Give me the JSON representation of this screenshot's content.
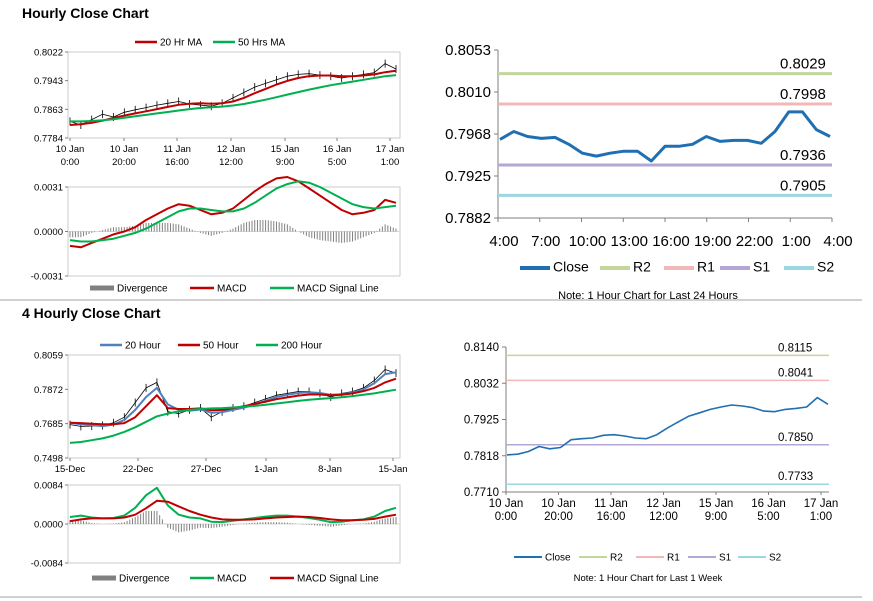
{
  "sections": {
    "hourly_title": "Hourly Close Chart",
    "four_hourly_title": "4 Hourly Close Chart"
  },
  "colors": {
    "price": "#000000",
    "ma_red": "#c00000",
    "ma_green": "#00b050",
    "ma_blue": "#4f81bd",
    "close_blue": "#1f6fb2",
    "r2": "#c4d79b",
    "r1": "#f2b8b8",
    "s1": "#b4a7d6",
    "s2": "#9bd7e0",
    "divergence": "#808080"
  },
  "chart_data": [
    {
      "id": "hourly_price",
      "type": "line",
      "title": "",
      "ylim": [
        0.7784,
        0.8022
      ],
      "yticks": [
        "0.8022",
        "0.7943",
        "0.7863",
        "0.7784"
      ],
      "xticks": [
        [
          "10 Jan",
          "0:00"
        ],
        [
          "10 Jan",
          "20:00"
        ],
        [
          "11 Jan",
          "16:00"
        ],
        [
          "12 Jan",
          "12:00"
        ],
        [
          "15 Jan",
          "9:00"
        ],
        [
          "16 Jan",
          "5:00"
        ],
        [
          "17 Jan",
          "1:00"
        ]
      ],
      "legend": [
        "20 Hr MA",
        "50 Hrs MA"
      ],
      "x": [
        0,
        4,
        8,
        12,
        16,
        20,
        24,
        28,
        32,
        36,
        40,
        44,
        48,
        52,
        56,
        60,
        64,
        68,
        72,
        76,
        80,
        84,
        88,
        92,
        96,
        100,
        104,
        108,
        112,
        116,
        120
      ],
      "series": [
        {
          "name": "",
          "color_key": "price",
          "values": [
            0.783,
            0.782,
            0.7835,
            0.785,
            0.7842,
            0.7855,
            0.7862,
            0.7868,
            0.7875,
            0.788,
            0.7885,
            0.7878,
            0.7875,
            0.7872,
            0.788,
            0.7895,
            0.791,
            0.7925,
            0.7935,
            0.7945,
            0.7955,
            0.796,
            0.7962,
            0.7958,
            0.7955,
            0.795,
            0.7955,
            0.796,
            0.7965,
            0.799,
            0.7975
          ]
        },
        {
          "name": "20 Hr MA",
          "color_key": "ma_red",
          "values": [
            0.782,
            0.7822,
            0.7826,
            0.7832,
            0.784,
            0.7846,
            0.7852,
            0.7858,
            0.7864,
            0.787,
            0.7876,
            0.7879,
            0.788,
            0.7879,
            0.788,
            0.7885,
            0.7895,
            0.7908,
            0.792,
            0.7932,
            0.7942,
            0.795,
            0.7955,
            0.7957,
            0.7957,
            0.7955,
            0.7955,
            0.7957,
            0.796,
            0.7966,
            0.797
          ]
        },
        {
          "name": "50 Hrs MA",
          "color_key": "ma_green",
          "values": [
            0.783,
            0.783,
            0.7831,
            0.7833,
            0.7836,
            0.784,
            0.7844,
            0.7848,
            0.7852,
            0.7856,
            0.786,
            0.7864,
            0.7867,
            0.7869,
            0.7871,
            0.7874,
            0.7878,
            0.7884,
            0.789,
            0.7897,
            0.7904,
            0.7911,
            0.7918,
            0.7924,
            0.793,
            0.7935,
            0.794,
            0.7945,
            0.795,
            0.7955,
            0.7958
          ]
        }
      ]
    },
    {
      "id": "hourly_macd",
      "type": "line",
      "title": "",
      "ylim": [
        -0.0031,
        0.0031
      ],
      "yticks": [
        "0.0031",
        "0.0000",
        "-0.0031"
      ],
      "legend": [
        "Divergence",
        "MACD",
        "MACD Signal Line"
      ],
      "x": [
        0,
        4,
        8,
        12,
        16,
        20,
        24,
        28,
        32,
        36,
        40,
        44,
        48,
        52,
        56,
        60,
        64,
        68,
        72,
        76,
        80,
        84,
        88,
        92,
        96,
        100,
        104,
        108,
        112,
        116,
        120
      ],
      "series": [
        {
          "name": "MACD",
          "color_key": "ma_red",
          "values": [
            -0.001,
            -0.0011,
            -0.0008,
            -0.0005,
            -0.0002,
            0.0,
            0.0003,
            0.0008,
            0.0012,
            0.0016,
            0.0019,
            0.0018,
            0.0015,
            0.0012,
            0.0013,
            0.0016,
            0.0022,
            0.0028,
            0.0033,
            0.0037,
            0.0038,
            0.0035,
            0.003,
            0.0025,
            0.002,
            0.0015,
            0.0012,
            0.0013,
            0.0015,
            0.0022,
            0.002
          ]
        },
        {
          "name": "MACD Signal Line",
          "color_key": "ma_green",
          "values": [
            -0.0006,
            -0.0007,
            -0.0007,
            -0.0006,
            -0.0005,
            -0.0003,
            -0.0001,
            0.0002,
            0.0006,
            0.001,
            0.0014,
            0.0016,
            0.0016,
            0.0015,
            0.0014,
            0.0014,
            0.0016,
            0.002,
            0.0025,
            0.003,
            0.0033,
            0.0035,
            0.0034,
            0.0031,
            0.0027,
            0.0023,
            0.0019,
            0.0017,
            0.0016,
            0.0017,
            0.0018
          ]
        },
        {
          "name": "Divergence",
          "color_key": "divergence",
          "values": [
            -0.0004,
            -0.0004,
            -0.0001,
            0.0001,
            0.0003,
            0.0003,
            0.0004,
            0.0006,
            0.0006,
            0.0006,
            0.0005,
            0.0002,
            -0.0001,
            -0.0003,
            -0.0001,
            0.0002,
            0.0006,
            0.0008,
            0.0008,
            0.0007,
            0.0005,
            0.0,
            -0.0004,
            -0.0006,
            -0.0007,
            -0.0008,
            -0.0007,
            -0.0004,
            -0.0001,
            0.0005,
            0.0002
          ]
        }
      ]
    },
    {
      "id": "hourly_close",
      "type": "line",
      "title": "",
      "ylim": [
        0.7882,
        0.8053
      ],
      "yticks": [
        "0.8053",
        "0.8010",
        "0.7968",
        "0.7925",
        "0.7882"
      ],
      "xticks": [
        "4:00",
        "7:00",
        "10:00",
        "13:00",
        "16:00",
        "19:00",
        "22:00",
        "1:00",
        "4:00"
      ],
      "legend": [
        "Close",
        "R2",
        "R1",
        "S1",
        "S2"
      ],
      "levels": [
        {
          "name": "R2",
          "value": 0.8029,
          "label": "0.8029",
          "color_key": "r2"
        },
        {
          "name": "R1",
          "value": 0.7998,
          "label": "0.7998",
          "color_key": "r1"
        },
        {
          "name": "S1",
          "value": 0.7936,
          "label": "0.7936",
          "color_key": "s1"
        },
        {
          "name": "S2",
          "value": 0.7905,
          "label": "0.7905",
          "color_key": "s2"
        }
      ],
      "x": [
        0,
        1,
        2,
        3,
        4,
        5,
        6,
        7,
        8,
        9,
        10,
        11,
        12,
        13,
        14,
        15,
        16,
        17,
        18,
        19,
        20,
        21,
        22,
        23,
        24
      ],
      "values": [
        0.7962,
        0.797,
        0.7965,
        0.7963,
        0.7964,
        0.7957,
        0.7948,
        0.7945,
        0.7948,
        0.795,
        0.795,
        0.794,
        0.7955,
        0.7955,
        0.7957,
        0.7965,
        0.796,
        0.7961,
        0.7961,
        0.7958,
        0.797,
        0.799,
        0.799,
        0.7972,
        0.7965
      ],
      "note": "Note: 1 Hour Chart for Last 24 Hours"
    },
    {
      "id": "four_hourly_price",
      "type": "line",
      "title": "",
      "ylim": [
        0.7498,
        0.8059
      ],
      "yticks": [
        "0.8059",
        "0.7872",
        "0.7685",
        "0.7498"
      ],
      "xticks": [
        "15-Dec",
        "22-Dec",
        "27-Dec",
        "1-Jan",
        "8-Jan",
        "15-Jan"
      ],
      "legend": [
        "20 Hour",
        "50 Hour",
        "200 Hour"
      ],
      "x": [
        0,
        4,
        8,
        12,
        16,
        20,
        24,
        28,
        32,
        36,
        40,
        44,
        48,
        52,
        56,
        60,
        64,
        68,
        72,
        76,
        80,
        84,
        88,
        92,
        96,
        100,
        104,
        108,
        112,
        116,
        120
      ],
      "series": [
        {
          "name": "",
          "color_key": "price",
          "values": [
            0.768,
            0.767,
            0.7672,
            0.7675,
            0.769,
            0.772,
            0.78,
            0.788,
            0.791,
            0.775,
            0.774,
            0.776,
            0.777,
            0.772,
            0.775,
            0.777,
            0.778,
            0.78,
            0.782,
            0.784,
            0.785,
            0.786,
            0.786,
            0.785,
            0.783,
            0.785,
            0.786,
            0.788,
            0.792,
            0.798,
            0.796
          ]
        },
        {
          "name": "20 Hour",
          "color_key": "ma_blue",
          "values": [
            0.769,
            0.7682,
            0.7676,
            0.7672,
            0.768,
            0.7705,
            0.776,
            0.783,
            0.788,
            0.779,
            0.776,
            0.7755,
            0.7762,
            0.7745,
            0.7748,
            0.776,
            0.7772,
            0.779,
            0.781,
            0.783,
            0.7842,
            0.7852,
            0.7856,
            0.7852,
            0.7842,
            0.7845,
            0.7855,
            0.7872,
            0.7905,
            0.7955,
            0.7965
          ]
        },
        {
          "name": "50 Hour",
          "color_key": "ma_red",
          "values": [
            0.769,
            0.7688,
            0.7685,
            0.7682,
            0.7682,
            0.7688,
            0.772,
            0.778,
            0.784,
            0.777,
            0.7765,
            0.7765,
            0.7768,
            0.7758,
            0.776,
            0.777,
            0.778,
            0.7792,
            0.7805,
            0.7818,
            0.7828,
            0.7838,
            0.7844,
            0.7844,
            0.784,
            0.7842,
            0.785,
            0.7862,
            0.788,
            0.791,
            0.793
          ]
        },
        {
          "name": "200 Hour",
          "color_key": "ma_green",
          "values": [
            0.758,
            0.7585,
            0.7595,
            0.7605,
            0.762,
            0.764,
            0.7665,
            0.7695,
            0.7725,
            0.774,
            0.7752,
            0.776,
            0.7765,
            0.7768,
            0.777,
            0.7773,
            0.7777,
            0.7782,
            0.7788,
            0.7795,
            0.7802,
            0.7809,
            0.7815,
            0.782,
            0.7824,
            0.7829,
            0.7835,
            0.7842,
            0.785,
            0.786,
            0.787
          ]
        }
      ]
    },
    {
      "id": "four_hourly_macd",
      "type": "line",
      "title": "",
      "ylim": [
        -0.0084,
        0.0084
      ],
      "yticks": [
        "0.0084",
        "0.0000",
        "-0.0084"
      ],
      "legend": [
        "Divergence",
        "MACD",
        "MACD Signal Line"
      ],
      "x": [
        0,
        4,
        8,
        12,
        16,
        20,
        24,
        28,
        32,
        36,
        40,
        44,
        48,
        52,
        56,
        60,
        64,
        68,
        72,
        76,
        80,
        84,
        88,
        92,
        96,
        100,
        104,
        108,
        112,
        116,
        120
      ],
      "series": [
        {
          "name": "MACD",
          "color_key": "ma_green",
          "values": [
            0.0015,
            0.0018,
            0.0014,
            0.0012,
            0.0013,
            0.0018,
            0.0035,
            0.0062,
            0.0078,
            0.004,
            0.002,
            0.0014,
            0.0012,
            0.0005,
            0.0004,
            0.0007,
            0.001,
            0.0013,
            0.0016,
            0.0018,
            0.0018,
            0.0016,
            0.0013,
            0.0009,
            0.0004,
            0.0005,
            0.0008,
            0.001,
            0.0016,
            0.0028,
            0.0035
          ]
        },
        {
          "name": "MACD Signal Line",
          "color_key": "ma_red",
          "values": [
            0.0006,
            0.001,
            0.0012,
            0.0012,
            0.0012,
            0.0014,
            0.002,
            0.0034,
            0.005,
            0.0048,
            0.0038,
            0.0028,
            0.002,
            0.0014,
            0.001,
            0.0009,
            0.0009,
            0.001,
            0.0012,
            0.0014,
            0.0015,
            0.0016,
            0.0015,
            0.0013,
            0.001,
            0.0008,
            0.0008,
            0.0009,
            0.0011,
            0.0016,
            0.002
          ]
        },
        {
          "name": "Divergence",
          "color_key": "divergence",
          "values": [
            0.0009,
            0.0008,
            0.0002,
            0.0,
            0.0001,
            0.0004,
            0.0015,
            0.0028,
            0.0028,
            -0.0008,
            -0.0018,
            -0.0014,
            -0.0008,
            -0.0009,
            -0.0006,
            -0.0002,
            0.0001,
            0.0003,
            0.0004,
            0.0004,
            0.0003,
            0.0,
            -0.0002,
            -0.0004,
            -0.0006,
            -0.0003,
            0.0,
            0.0001,
            0.0005,
            0.0012,
            0.0015
          ]
        }
      ]
    },
    {
      "id": "week_close",
      "type": "line",
      "title": "",
      "ylim": [
        0.771,
        0.814
      ],
      "yticks": [
        "0.8140",
        "0.8032",
        "0.7925",
        "0.7818",
        "0.7710"
      ],
      "xticks": [
        [
          "10 Jan",
          "0:00"
        ],
        [
          "10 Jan",
          "20:00"
        ],
        [
          "11 Jan",
          "16:00"
        ],
        [
          "12 Jan",
          "12:00"
        ],
        [
          "15 Jan",
          "9:00"
        ],
        [
          "16 Jan",
          "5:00"
        ],
        [
          "17 Jan",
          "1:00"
        ]
      ],
      "legend": [
        "Close",
        "R2",
        "R1",
        "S1",
        "S2"
      ],
      "levels": [
        {
          "name": "R2",
          "value": 0.8115,
          "label": "0.8115",
          "color_key": "r2"
        },
        {
          "name": "R1",
          "value": 0.8041,
          "label": "0.8041",
          "color_key": "r1"
        },
        {
          "name": "S1",
          "value": 0.785,
          "label": "0.7850",
          "color_key": "s1"
        },
        {
          "name": "S2",
          "value": 0.7733,
          "label": "0.7733",
          "color_key": "s2"
        }
      ],
      "x": [
        0,
        4,
        8,
        12,
        16,
        20,
        24,
        28,
        32,
        36,
        40,
        44,
        48,
        52,
        56,
        60,
        64,
        68,
        72,
        76,
        80,
        84,
        88,
        92,
        96,
        100,
        104,
        108,
        112,
        116,
        120
      ],
      "values": [
        0.782,
        0.7822,
        0.783,
        0.7845,
        0.7838,
        0.7842,
        0.7865,
        0.7868,
        0.787,
        0.7878,
        0.788,
        0.7876,
        0.787,
        0.7868,
        0.788,
        0.79,
        0.7918,
        0.7935,
        0.7945,
        0.7955,
        0.7962,
        0.7968,
        0.7965,
        0.796,
        0.795,
        0.7948,
        0.7955,
        0.7958,
        0.7962,
        0.799,
        0.797
      ],
      "note": "Note: 1 Hour Chart for Last 1 Week"
    }
  ]
}
